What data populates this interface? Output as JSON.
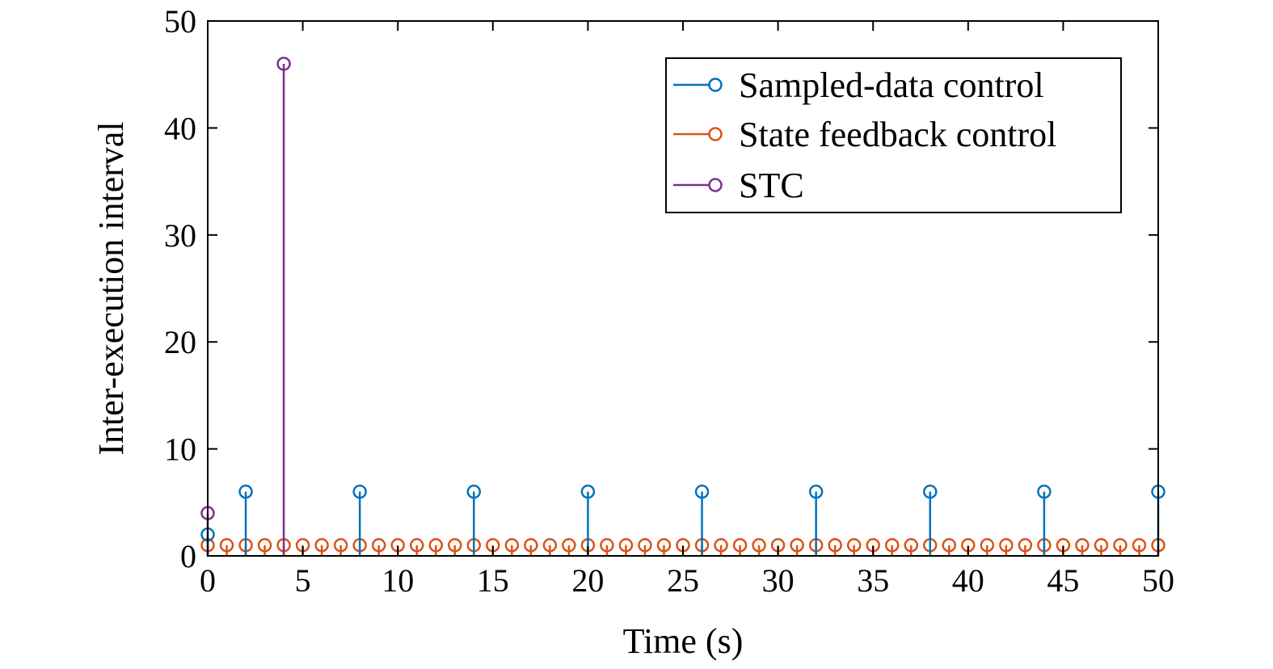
{
  "chart_data": {
    "type": "stem",
    "title": "",
    "xlabel": "Time (s)",
    "ylabel": "Inter-execution interval",
    "xlim": [
      0,
      50
    ],
    "ylim": [
      0,
      50
    ],
    "xticks": [
      0,
      5,
      10,
      15,
      20,
      25,
      30,
      35,
      40,
      45,
      50
    ],
    "yticks": [
      0,
      10,
      20,
      30,
      40,
      50
    ],
    "grid": false,
    "legend_position": "top-right",
    "series": [
      {
        "name": "State feedback control",
        "color": "#D95319",
        "x": [
          0,
          1,
          2,
          3,
          4,
          5,
          6,
          7,
          8,
          9,
          10,
          11,
          12,
          13,
          14,
          15,
          16,
          17,
          18,
          19,
          20,
          21,
          22,
          23,
          24,
          25,
          26,
          27,
          28,
          29,
          30,
          31,
          32,
          33,
          34,
          35,
          36,
          37,
          38,
          39,
          40,
          41,
          42,
          43,
          44,
          45,
          46,
          47,
          48,
          49,
          50
        ],
        "y": [
          1,
          1,
          1,
          1,
          1,
          1,
          1,
          1,
          1,
          1,
          1,
          1,
          1,
          1,
          1,
          1,
          1,
          1,
          1,
          1,
          1,
          1,
          1,
          1,
          1,
          1,
          1,
          1,
          1,
          1,
          1,
          1,
          1,
          1,
          1,
          1,
          1,
          1,
          1,
          1,
          1,
          1,
          1,
          1,
          1,
          1,
          1,
          1,
          1,
          1,
          1
        ]
      },
      {
        "name": "Sampled-data control",
        "color": "#0072BD",
        "x": [
          0,
          2,
          8,
          14,
          20,
          26,
          32,
          38,
          44,
          50
        ],
        "y": [
          2,
          6,
          6,
          6,
          6,
          6,
          6,
          6,
          6,
          6
        ]
      },
      {
        "name": "STC",
        "color": "#7E2F8E",
        "x": [
          0,
          4
        ],
        "y": [
          4,
          46
        ]
      }
    ],
    "legend_order": [
      "Sampled-data control",
      "State feedback control",
      "STC"
    ]
  }
}
